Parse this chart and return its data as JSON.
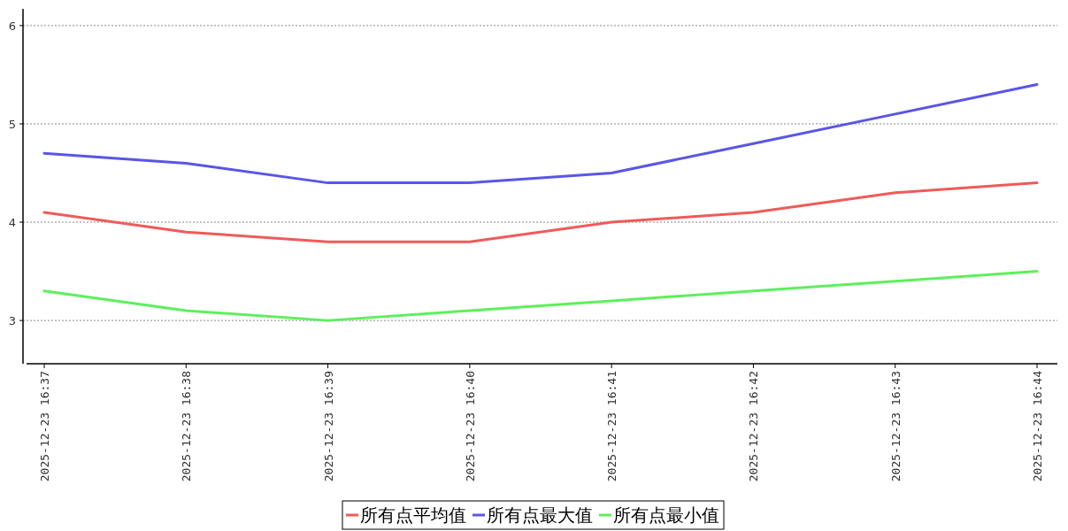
{
  "chart_data": {
    "type": "line",
    "categories": [
      "2025-12-23 16:37",
      "2025-12-23 16:38",
      "2025-12-23 16:39",
      "2025-12-23 16:40",
      "2025-12-23 16:41",
      "2025-12-23 16:42",
      "2025-12-23 16:43",
      "2025-12-23 16:44"
    ],
    "series": [
      {
        "name": "所有点平均值",
        "color": "#f05a5a",
        "values": [
          4.1,
          3.9,
          3.8,
          3.8,
          4.0,
          4.1,
          4.3,
          4.4
        ]
      },
      {
        "name": "所有点最大值",
        "color": "#5a55e6",
        "values": [
          4.7,
          4.6,
          4.4,
          4.4,
          4.5,
          4.8,
          5.1,
          5.4
        ]
      },
      {
        "name": "所有点最小值",
        "color": "#5cf05c",
        "values": [
          3.3,
          3.1,
          3.0,
          3.1,
          3.2,
          3.3,
          3.4,
          3.5
        ]
      }
    ],
    "ylim": [
      2.56,
      6.17
    ],
    "yticks": [
      3,
      4,
      5,
      6
    ],
    "grid": "y",
    "legend": "bottom"
  }
}
